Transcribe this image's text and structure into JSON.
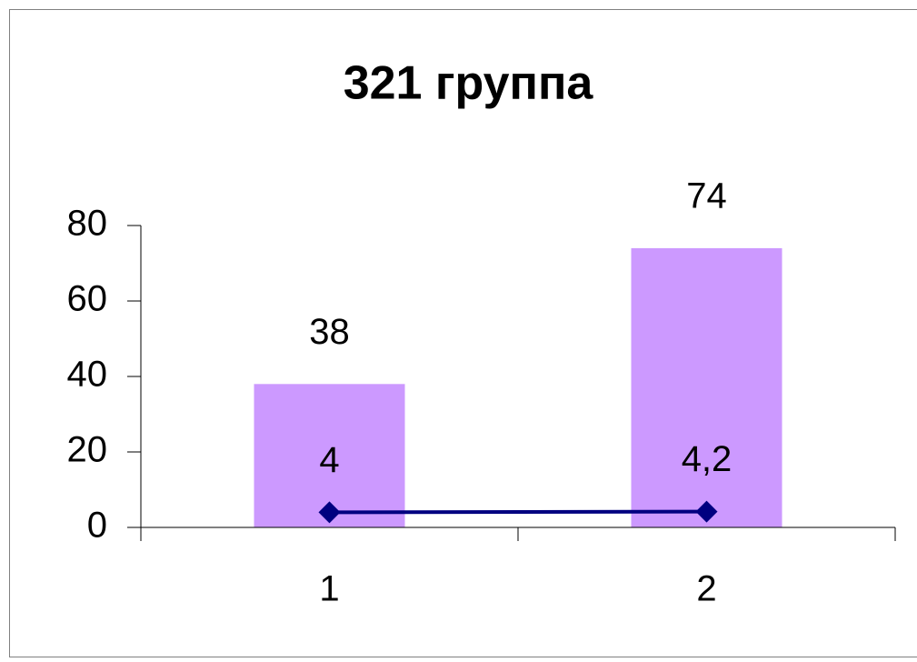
{
  "chart_data": {
    "type": "bar",
    "title": "321 группа",
    "categories": [
      "1",
      "2"
    ],
    "series": [
      {
        "type": "bar",
        "color": "#cc99ff",
        "values": [
          38,
          74
        ]
      },
      {
        "type": "line",
        "color": "#000080",
        "values": [
          4,
          4.2
        ],
        "value_labels": [
          "4",
          "4,2"
        ]
      }
    ],
    "ylim": [
      0,
      80
    ],
    "yticks": [
      0,
      20,
      40,
      60,
      80
    ],
    "grid": false
  }
}
